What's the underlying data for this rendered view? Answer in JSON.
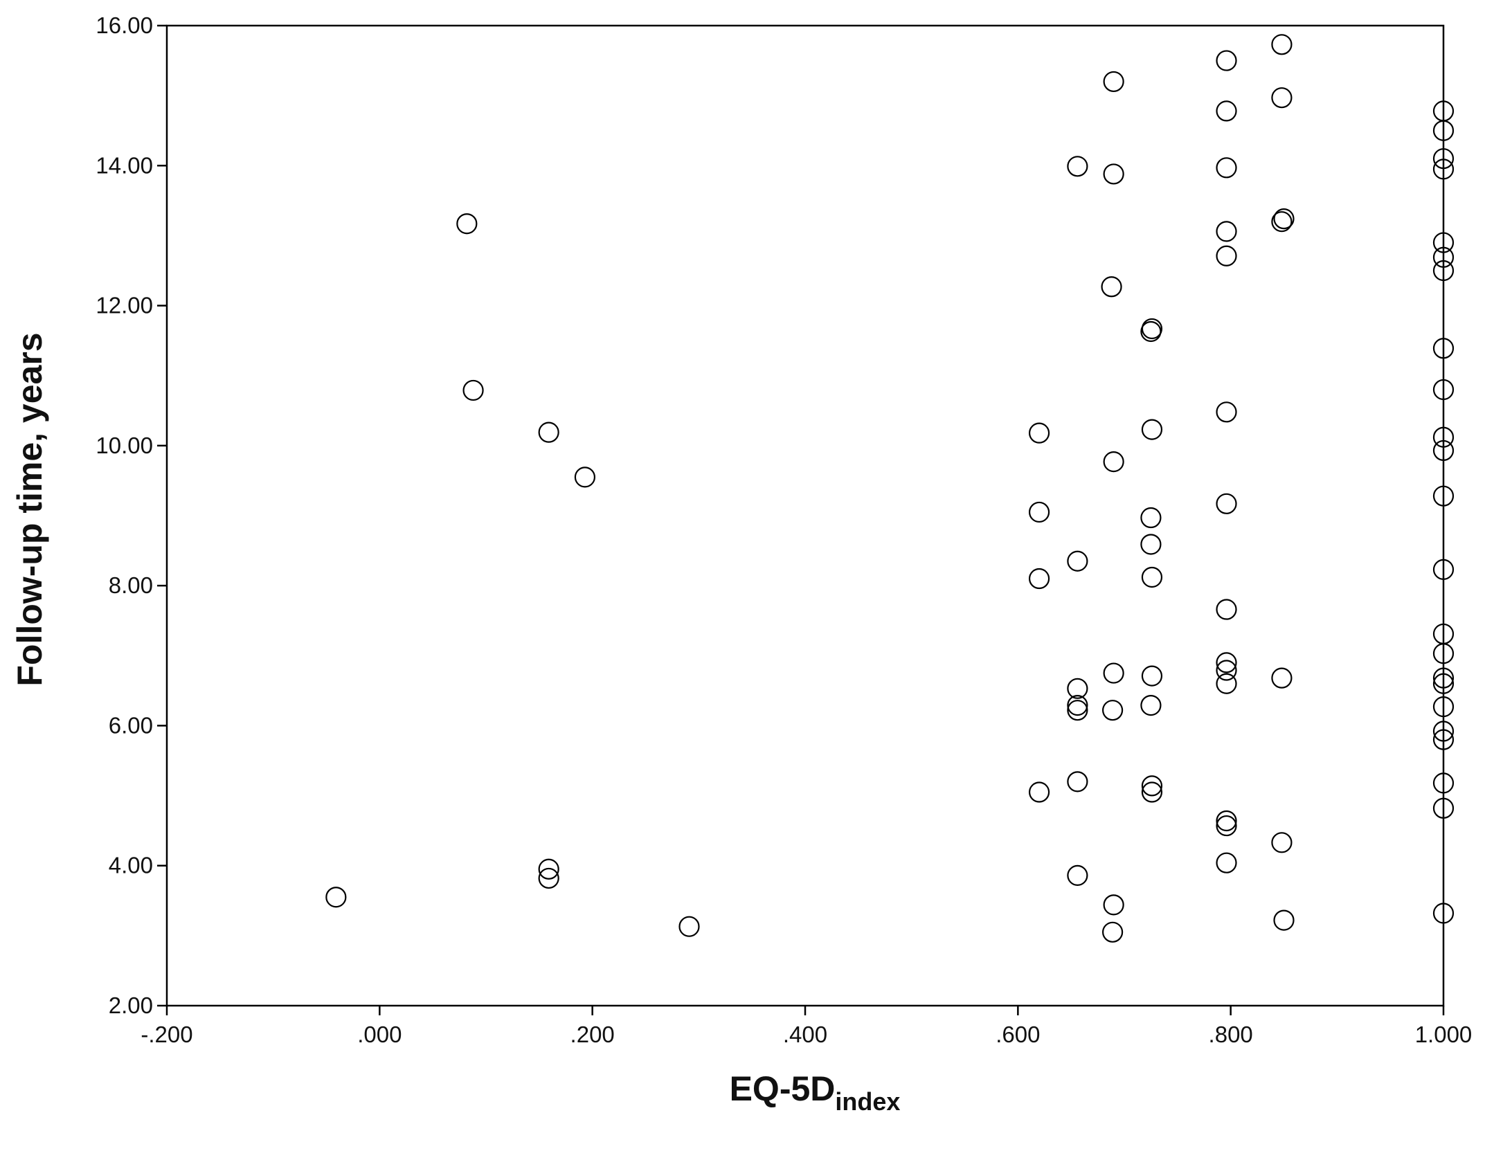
{
  "chart_data": {
    "type": "scatter",
    "x_label": {
      "main": "EQ-5D",
      "subscript": "index"
    },
    "y_label": "Follow-up time, years",
    "xlim": [
      -0.2,
      1.0
    ],
    "xticks": [
      {
        "value": -0.2,
        "label": "-.200"
      },
      {
        "value": 0,
        "label": ".000"
      },
      {
        "value": 0.2,
        "label": ".200"
      },
      {
        "value": 0.4,
        "label": ".400"
      },
      {
        "value": 0.6,
        "label": ".600"
      },
      {
        "value": 0.8,
        "label": ".800"
      },
      {
        "value": 1.0,
        "label": "1.000"
      }
    ],
    "ylim": [
      2,
      16
    ],
    "yticks": [
      {
        "value": 2,
        "label": "2.00"
      },
      {
        "value": 4,
        "label": "4.00"
      },
      {
        "value": 6,
        "label": "6.00"
      },
      {
        "value": 8,
        "label": "8.00"
      },
      {
        "value": 10,
        "label": "10.00"
      },
      {
        "value": 12,
        "label": "12.00"
      },
      {
        "value": 14,
        "label": "14.00"
      },
      {
        "value": 16,
        "label": "16.00"
      }
    ],
    "marker_color": "#000000",
    "x": [
      -0.041,
      0.082,
      0.088,
      0.159,
      0.193,
      0.159,
      0.159,
      0.291,
      0.62,
      0.62,
      0.62,
      0.62,
      0.656,
      0.656,
      0.656,
      0.656,
      0.656,
      0.656,
      0.656,
      0.69,
      0.69,
      0.688,
      0.69,
      0.69,
      0.689,
      0.69,
      0.689,
      0.726,
      0.725,
      0.726,
      0.725,
      0.725,
      0.726,
      0.726,
      0.725,
      0.726,
      0.726,
      0.796,
      0.796,
      0.796,
      0.796,
      0.796,
      0.796,
      0.796,
      0.796,
      0.796,
      0.796,
      0.796,
      0.796,
      0.796,
      0.796,
      0.848,
      0.848,
      0.848,
      0.85,
      0.848,
      0.848,
      0.85,
      1.0,
      1.0,
      1.0,
      1.0,
      1.0,
      1.0,
      1.0,
      1.0,
      1.0,
      1.0,
      1.0,
      1.0,
      1.0,
      1.0,
      1.0,
      1.0,
      1.0,
      1.0,
      1.0,
      1.0,
      1.0,
      1.0,
      1.0
    ],
    "y": [
      3.55,
      13.17,
      10.79,
      10.19,
      9.55,
      3.95,
      3.82,
      3.13,
      10.18,
      9.05,
      8.1,
      5.05,
      13.99,
      8.35,
      6.53,
      6.29,
      6.22,
      5.2,
      3.86,
      15.2,
      13.88,
      12.27,
      9.77,
      6.75,
      6.22,
      3.44,
      3.05,
      11.67,
      11.63,
      10.23,
      8.97,
      8.59,
      8.12,
      6.71,
      6.29,
      5.14,
      5.05,
      15.5,
      14.78,
      13.97,
      13.06,
      12.71,
      10.48,
      9.17,
      7.66,
      6.9,
      6.79,
      6.6,
      4.64,
      4.57,
      4.04,
      15.73,
      14.97,
      13.2,
      13.24,
      6.68,
      4.33,
      3.22,
      14.78,
      14.5,
      14.1,
      13.95,
      12.9,
      12.69,
      12.5,
      11.39,
      10.8,
      10.12,
      9.93,
      9.28,
      8.23,
      7.31,
      7.03,
      6.68,
      6.6,
      6.27,
      5.92,
      5.8,
      5.18,
      4.82,
      3.32
    ]
  }
}
